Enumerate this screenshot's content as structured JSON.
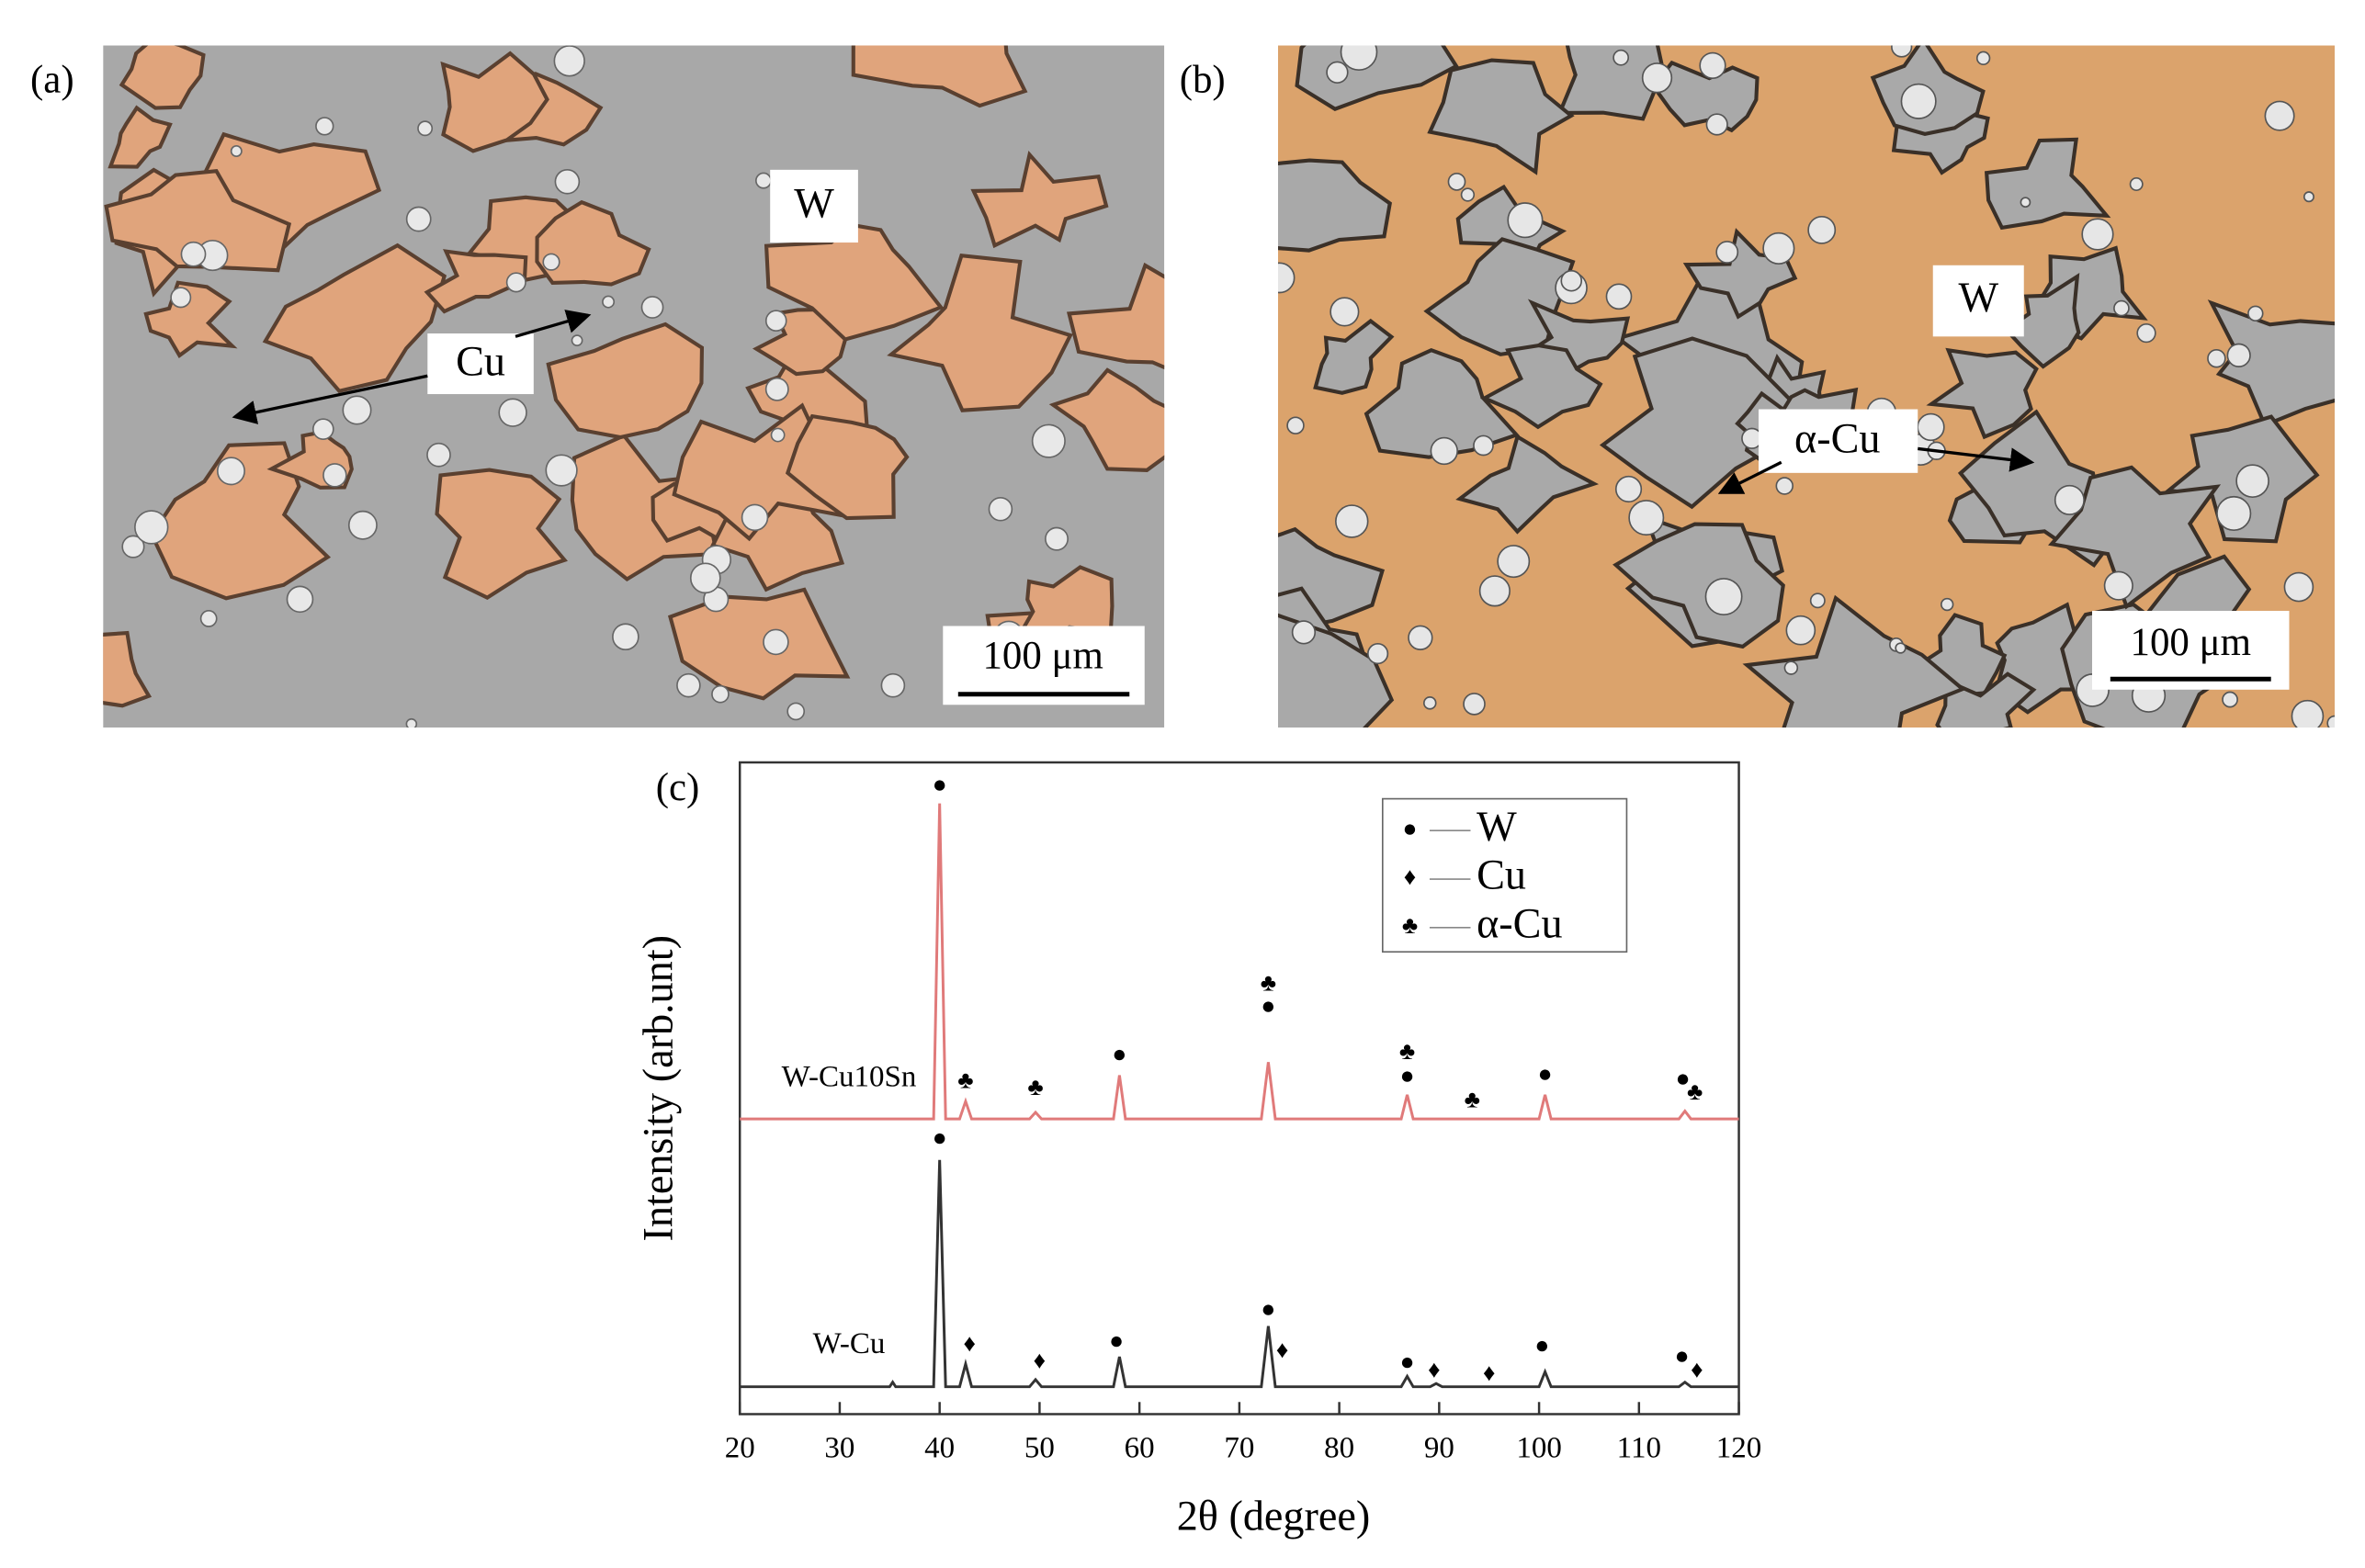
{
  "panels": [
    {
      "label": "(a)",
      "phase_labels": [
        "W",
        "Cu"
      ],
      "scale_bar": "100 μm"
    },
    {
      "label": "(b)",
      "phase_labels": [
        "W",
        "α-Cu"
      ],
      "scale_bar": "100 μm"
    }
  ],
  "chart_data": {
    "type": "line",
    "label": "(c)",
    "x_label": "2θ (degree)",
    "y_label": "Intensity (arb.unt)",
    "x": [
      20,
      35,
      35.3,
      35.6,
      39.4,
      40.0,
      40.6,
      42.0,
      42.6,
      43.2,
      49.0,
      49.6,
      50.2,
      57.4,
      58.0,
      58.6,
      72.2,
      72.9,
      73.6,
      86.2,
      86.8,
      87.4,
      89.1,
      89.7,
      90.3,
      100.0,
      100.6,
      101.2,
      114.0,
      114.6,
      115.2,
      120
    ],
    "series": [
      {
        "name": "W-Cu10Sn",
        "color": "#e07a7a",
        "values": [
          45.3,
          45.3,
          45.3,
          45.3,
          45.3,
          93.7,
          45.3,
          45.3,
          48.0,
          45.3,
          45.3,
          46.3,
          45.3,
          45.3,
          52,
          45.3,
          45.3,
          54,
          45.3,
          45.3,
          49,
          45.3,
          45.3,
          45.3,
          45.3,
          45.3,
          49,
          45.3,
          45.3,
          46.5,
          45.3,
          45.3
        ]
      },
      {
        "name": "W-Cu",
        "color": "#333333",
        "values": [
          4.2,
          4.2,
          4.9,
          4.2,
          4.2,
          39,
          4.2,
          4.2,
          7.7,
          4.2,
          4.2,
          5.3,
          4.2,
          4.2,
          8.8,
          4.2,
          4.2,
          13.5,
          4.2,
          4.2,
          5.8,
          4.2,
          4.2,
          4.7,
          4.2,
          4.2,
          6.5,
          4.2,
          4.2,
          4.9,
          4.2,
          4.2
        ]
      }
    ],
    "xlim": [
      20,
      120
    ],
    "xticks": [
      20,
      30,
      40,
      50,
      60,
      70,
      80,
      90,
      100,
      110,
      120
    ],
    "ylim": [
      0,
      100
    ],
    "annotations": [
      {
        "text": "●",
        "x": 40,
        "y": 96.3
      },
      {
        "text": "♣",
        "x": 42.6,
        "y": 50.9
      },
      {
        "text": "♣",
        "x": 49.6,
        "y": 49.8
      },
      {
        "text": "●",
        "x": 58.0,
        "y": 54.9
      },
      {
        "text": "♣",
        "x": 72.9,
        "y": 65.8
      },
      {
        "text": "●",
        "x": 72.9,
        "y": 62.3
      },
      {
        "text": "♣",
        "x": 86.8,
        "y": 55.3
      },
      {
        "text": "●",
        "x": 86.8,
        "y": 51.6
      },
      {
        "text": "♣",
        "x": 93.3,
        "y": 47.9
      },
      {
        "text": "●",
        "x": 100.6,
        "y": 51.9
      },
      {
        "text": "●",
        "x": 114.4,
        "y": 51.2
      },
      {
        "text": "♣",
        "x": 115.6,
        "y": 49.1
      },
      {
        "text": "●",
        "x": 40.0,
        "y": 42.1
      },
      {
        "text": "♦",
        "x": 43.0,
        "y": 10.5
      },
      {
        "text": "♦",
        "x": 50.0,
        "y": 7.9
      },
      {
        "text": "●",
        "x": 57.7,
        "y": 10.9
      },
      {
        "text": "●",
        "x": 72.9,
        "y": 15.8
      },
      {
        "text": "♦",
        "x": 74.3,
        "y": 9.5
      },
      {
        "text": "●",
        "x": 86.8,
        "y": 7.7
      },
      {
        "text": "♦",
        "x": 89.5,
        "y": 6.5
      },
      {
        "text": "♦",
        "x": 95.0,
        "y": 6.0
      },
      {
        "text": "●",
        "x": 100.3,
        "y": 10.2
      },
      {
        "text": "●",
        "x": 114.3,
        "y": 8.6
      },
      {
        "text": "♦",
        "x": 115.8,
        "y": 6.5
      }
    ],
    "legend": [
      {
        "symbol": "●",
        "label": "W"
      },
      {
        "symbol": "♦",
        "label": "Cu"
      },
      {
        "symbol": "♣",
        "label": "α-Cu"
      }
    ]
  }
}
